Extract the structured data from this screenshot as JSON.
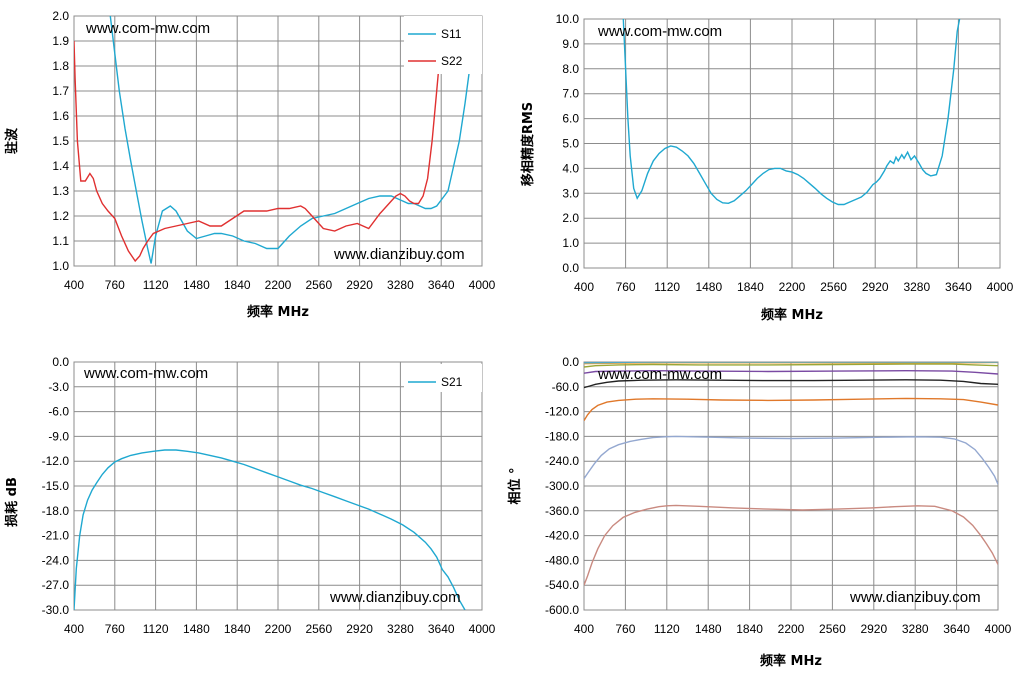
{
  "chart_data": [
    {
      "type": "line",
      "xlabel": "频率 MHz",
      "ylabel": "驻波",
      "xlim": [
        400,
        4000
      ],
      "ylim": [
        1.0,
        2.0
      ],
      "x_ticks": [
        "400",
        "760",
        "1120",
        "1480",
        "1840",
        "2200",
        "2560",
        "2920",
        "3280",
        "3640",
        "4000"
      ],
      "y_ticks": [
        "1.0",
        "1.1",
        "1.2",
        "1.3",
        "1.4",
        "1.5",
        "1.6",
        "1.7",
        "1.8",
        "1.9",
        "2.0"
      ],
      "legend": "top-right",
      "watermarks": [
        "www.com-mw.com",
        "www.dianzibuy.com"
      ],
      "series": [
        {
          "name": "S11",
          "color": "#1fa8d0",
          "x": [
            720,
            760,
            800,
            850,
            900,
            950,
            1000,
            1050,
            1080,
            1120,
            1180,
            1250,
            1300,
            1350,
            1400,
            1480,
            1560,
            1640,
            1700,
            1800,
            1900,
            2000,
            2100,
            2200,
            2300,
            2400,
            2500,
            2600,
            2700,
            2800,
            2900,
            3000,
            3100,
            3200,
            3250,
            3300,
            3350,
            3400,
            3450,
            3500,
            3550,
            3600,
            3700,
            3800,
            3850,
            3900,
            3950,
            3970
          ],
          "y": [
            2.0,
            1.85,
            1.7,
            1.55,
            1.42,
            1.3,
            1.18,
            1.07,
            1.01,
            1.12,
            1.22,
            1.24,
            1.22,
            1.18,
            1.14,
            1.11,
            1.12,
            1.13,
            1.13,
            1.12,
            1.1,
            1.09,
            1.07,
            1.07,
            1.12,
            1.16,
            1.19,
            1.2,
            1.21,
            1.23,
            1.25,
            1.27,
            1.28,
            1.28,
            1.27,
            1.26,
            1.25,
            1.25,
            1.24,
            1.23,
            1.23,
            1.24,
            1.3,
            1.5,
            1.65,
            1.82,
            1.98,
            2.0
          ]
        },
        {
          "name": "S22",
          "color": "#e03030",
          "x": [
            400,
            410,
            430,
            460,
            500,
            540,
            570,
            600,
            650,
            700,
            760,
            820,
            880,
            940,
            980,
            1010,
            1050,
            1100,
            1150,
            1200,
            1300,
            1400,
            1500,
            1600,
            1700,
            1800,
            1900,
            2000,
            2100,
            2200,
            2300,
            2400,
            2440,
            2500,
            2600,
            2700,
            2800,
            2900,
            3000,
            3100,
            3200,
            3240,
            3280,
            3320,
            3360,
            3400,
            3440,
            3480,
            3520,
            3560,
            3600,
            3630,
            3650
          ],
          "y": [
            1.9,
            1.75,
            1.5,
            1.34,
            1.34,
            1.37,
            1.35,
            1.3,
            1.25,
            1.22,
            1.19,
            1.12,
            1.06,
            1.02,
            1.04,
            1.07,
            1.1,
            1.13,
            1.14,
            1.15,
            1.16,
            1.17,
            1.18,
            1.16,
            1.16,
            1.19,
            1.22,
            1.22,
            1.22,
            1.23,
            1.23,
            1.24,
            1.23,
            1.2,
            1.15,
            1.14,
            1.16,
            1.17,
            1.15,
            1.21,
            1.26,
            1.28,
            1.29,
            1.28,
            1.26,
            1.25,
            1.25,
            1.28,
            1.35,
            1.5,
            1.7,
            1.85,
            2.0
          ]
        }
      ]
    },
    {
      "type": "line",
      "xlabel": "频率 MHz",
      "ylabel": "移相精度RMS",
      "xlim": [
        400,
        4000
      ],
      "ylim": [
        0.0,
        10.0
      ],
      "x_ticks": [
        "400",
        "760",
        "1120",
        "1480",
        "1840",
        "2200",
        "2560",
        "2920",
        "3280",
        "3640",
        "4000"
      ],
      "y_ticks": [
        "0.0",
        "1.0",
        "2.0",
        "3.0",
        "4.0",
        "5.0",
        "6.0",
        "7.0",
        "8.0",
        "9.0",
        "10.0"
      ],
      "watermarks": [
        "www.com-mw.com"
      ],
      "series": [
        {
          "name": "",
          "color": "#1fa8d0",
          "x": [
            740,
            760,
            780,
            800,
            830,
            860,
            900,
            950,
            1000,
            1050,
            1100,
            1150,
            1200,
            1250,
            1300,
            1350,
            1400,
            1450,
            1500,
            1550,
            1600,
            1650,
            1700,
            1750,
            1800,
            1850,
            1900,
            1950,
            2000,
            2050,
            2100,
            2150,
            2200,
            2250,
            2300,
            2350,
            2400,
            2450,
            2500,
            2550,
            2600,
            2650,
            2700,
            2750,
            2800,
            2850,
            2900,
            2930,
            2960,
            3000,
            3020,
            3050,
            3080,
            3100,
            3120,
            3150,
            3170,
            3200,
            3230,
            3260,
            3300,
            3330,
            3360,
            3400,
            3450,
            3500,
            3550,
            3600,
            3630,
            3650
          ],
          "y": [
            10.0,
            8.0,
            6.0,
            4.5,
            3.2,
            2.8,
            3.1,
            3.8,
            4.3,
            4.6,
            4.8,
            4.9,
            4.85,
            4.7,
            4.5,
            4.2,
            3.8,
            3.4,
            3.0,
            2.75,
            2.62,
            2.6,
            2.7,
            2.9,
            3.1,
            3.35,
            3.6,
            3.8,
            3.95,
            4.0,
            4.0,
            3.9,
            3.85,
            3.75,
            3.6,
            3.4,
            3.2,
            2.98,
            2.8,
            2.65,
            2.55,
            2.55,
            2.65,
            2.75,
            2.85,
            3.05,
            3.35,
            3.45,
            3.6,
            3.9,
            4.1,
            4.3,
            4.2,
            4.45,
            4.3,
            4.55,
            4.4,
            4.65,
            4.35,
            4.5,
            4.2,
            3.95,
            3.8,
            3.7,
            3.75,
            4.5,
            6.0,
            8.0,
            9.5,
            10.0
          ]
        }
      ]
    },
    {
      "type": "line",
      "xlabel": "",
      "ylabel": "损耗 dB",
      "xlim": [
        400,
        4000
      ],
      "ylim": [
        -30.0,
        0.0
      ],
      "x_ticks": [
        "400",
        "760",
        "1120",
        "1480",
        "1840",
        "2200",
        "2560",
        "2920",
        "3280",
        "3640",
        "4000"
      ],
      "y_ticks": [
        "-30.0",
        "-27.0",
        "-24.0",
        "-21.0",
        "-18.0",
        "-15.0",
        "-12.0",
        "-9.0",
        "-6.0",
        "-3.0",
        "0.0"
      ],
      "legend": "top-right",
      "watermarks": [
        "www.com-mw.com",
        "www.dianzibuy.com"
      ],
      "series": [
        {
          "name": "S21",
          "color": "#1fa8d0",
          "x": [
            400,
            420,
            450,
            480,
            520,
            560,
            600,
            650,
            700,
            760,
            820,
            900,
            1000,
            1100,
            1200,
            1300,
            1400,
            1500,
            1600,
            1700,
            1800,
            1900,
            2000,
            2100,
            2200,
            2300,
            2400,
            2500,
            2600,
            2700,
            2800,
            2900,
            3000,
            3100,
            3200,
            3300,
            3400,
            3500,
            3550,
            3600,
            3650,
            3700,
            3750,
            3800,
            3850
          ],
          "y": [
            -30.0,
            -25.0,
            -21.0,
            -18.5,
            -16.7,
            -15.5,
            -14.6,
            -13.6,
            -12.8,
            -12.1,
            -11.7,
            -11.3,
            -11.0,
            -10.8,
            -10.65,
            -10.65,
            -10.8,
            -11.0,
            -11.3,
            -11.6,
            -12.0,
            -12.4,
            -12.9,
            -13.4,
            -13.9,
            -14.4,
            -14.9,
            -15.3,
            -15.8,
            -16.3,
            -16.8,
            -17.3,
            -17.8,
            -18.4,
            -19.0,
            -19.7,
            -20.6,
            -21.8,
            -22.6,
            -23.6,
            -25.1,
            -26.0,
            -27.3,
            -28.8,
            -30.0
          ]
        }
      ]
    },
    {
      "type": "line",
      "xlabel": "频率 MHz",
      "ylabel": "相位 °",
      "xlim": [
        400,
        4000
      ],
      "ylim": [
        -600.0,
        0.0
      ],
      "x_ticks": [
        "400",
        "760",
        "1120",
        "1480",
        "1840",
        "2200",
        "2560",
        "2920",
        "3280",
        "3640",
        "4000"
      ],
      "y_ticks": [
        "-600.0",
        "-540.0",
        "-480.0",
        "-420.0",
        "-360.0",
        "-300.0",
        "-240.0",
        "-180.0",
        "-120.0",
        "-60.0",
        "0.0"
      ],
      "watermarks": [
        "www.com-mw.com",
        "www.dianzibuy.com"
      ],
      "series": [
        {
          "name": "",
          "color": "#f2a33c",
          "x": [
            400,
            700,
            1000,
            1400,
            2000,
            2600,
            3200,
            3600,
            3800,
            4000
          ],
          "y": [
            -4,
            -3,
            -2,
            -2,
            -2,
            -2,
            -2,
            -2,
            -2,
            -1
          ]
        },
        {
          "name": "",
          "color": "#4ea8c8",
          "x": [
            400,
            700,
            1000,
            1400,
            2000,
            2600,
            3200,
            3600,
            3800,
            4000
          ],
          "y": [
            -2,
            -1,
            0,
            0,
            0,
            0,
            0,
            0,
            0,
            0
          ]
        },
        {
          "name": "",
          "color": "#9aa637",
          "x": [
            400,
            500,
            700,
            1000,
            1400,
            2000,
            2600,
            3200,
            3600,
            3800,
            4000
          ],
          "y": [
            -12,
            -9,
            -7,
            -6,
            -7,
            -7,
            -6,
            -5,
            -5,
            -7,
            -9
          ]
        },
        {
          "name": "",
          "color": "#7a4aa3",
          "x": [
            400,
            500,
            700,
            1000,
            1400,
            2000,
            2600,
            3200,
            3600,
            3800,
            4000
          ],
          "y": [
            -27,
            -23,
            -22,
            -21,
            -22,
            -23,
            -22,
            -21,
            -22,
            -25,
            -29
          ]
        },
        {
          "name": "",
          "color": "#222222",
          "x": [
            400,
            450,
            500,
            600,
            700,
            900,
            1200,
            1600,
            2000,
            2400,
            2800,
            3200,
            3500,
            3700,
            3850,
            4000
          ],
          "y": [
            -62,
            -58,
            -54,
            -49,
            -46,
            -44,
            -43,
            -44,
            -45,
            -45,
            -44,
            -43,
            -44,
            -47,
            -52,
            -54
          ]
        },
        {
          "name": "",
          "color": "#e0782a",
          "x": [
            400,
            430,
            470,
            520,
            600,
            700,
            850,
            1000,
            1300,
            1600,
            2000,
            2400,
            2800,
            3200,
            3500,
            3700,
            3850,
            4000
          ],
          "y": [
            -142,
            -128,
            -115,
            -105,
            -97,
            -93,
            -90,
            -89,
            -90,
            -92,
            -93,
            -92,
            -90,
            -88,
            -89,
            -91,
            -97,
            -104
          ]
        },
        {
          "name": "",
          "color": "#94a8d0",
          "x": [
            400,
            440,
            490,
            550,
            620,
            700,
            800,
            900,
            1000,
            1100,
            1200,
            1500,
            1800,
            2200,
            2600,
            3000,
            3300,
            3500,
            3620,
            3720,
            3800,
            3860,
            3920,
            3970,
            4000
          ],
          "y": [
            -282,
            -266,
            -246,
            -226,
            -210,
            -200,
            -192,
            -187,
            -183,
            -181,
            -180,
            -182,
            -184,
            -185,
            -184,
            -182,
            -181,
            -182,
            -186,
            -196,
            -212,
            -232,
            -255,
            -276,
            -296
          ]
        },
        {
          "name": "",
          "color": "#c98a80",
          "x": [
            400,
            430,
            470,
            520,
            580,
            650,
            740,
            840,
            950,
            1050,
            1120,
            1200,
            1400,
            1700,
            2000,
            2300,
            2600,
            2900,
            3100,
            3300,
            3450,
            3600,
            3700,
            3780,
            3850,
            3900,
            3950,
            4000
          ],
          "y": [
            -540,
            -518,
            -486,
            -452,
            -420,
            -396,
            -376,
            -364,
            -356,
            -350,
            -348,
            -347,
            -349,
            -353,
            -356,
            -358,
            -356,
            -353,
            -350,
            -348,
            -349,
            -360,
            -375,
            -395,
            -420,
            -440,
            -462,
            -490
          ]
        }
      ]
    }
  ]
}
